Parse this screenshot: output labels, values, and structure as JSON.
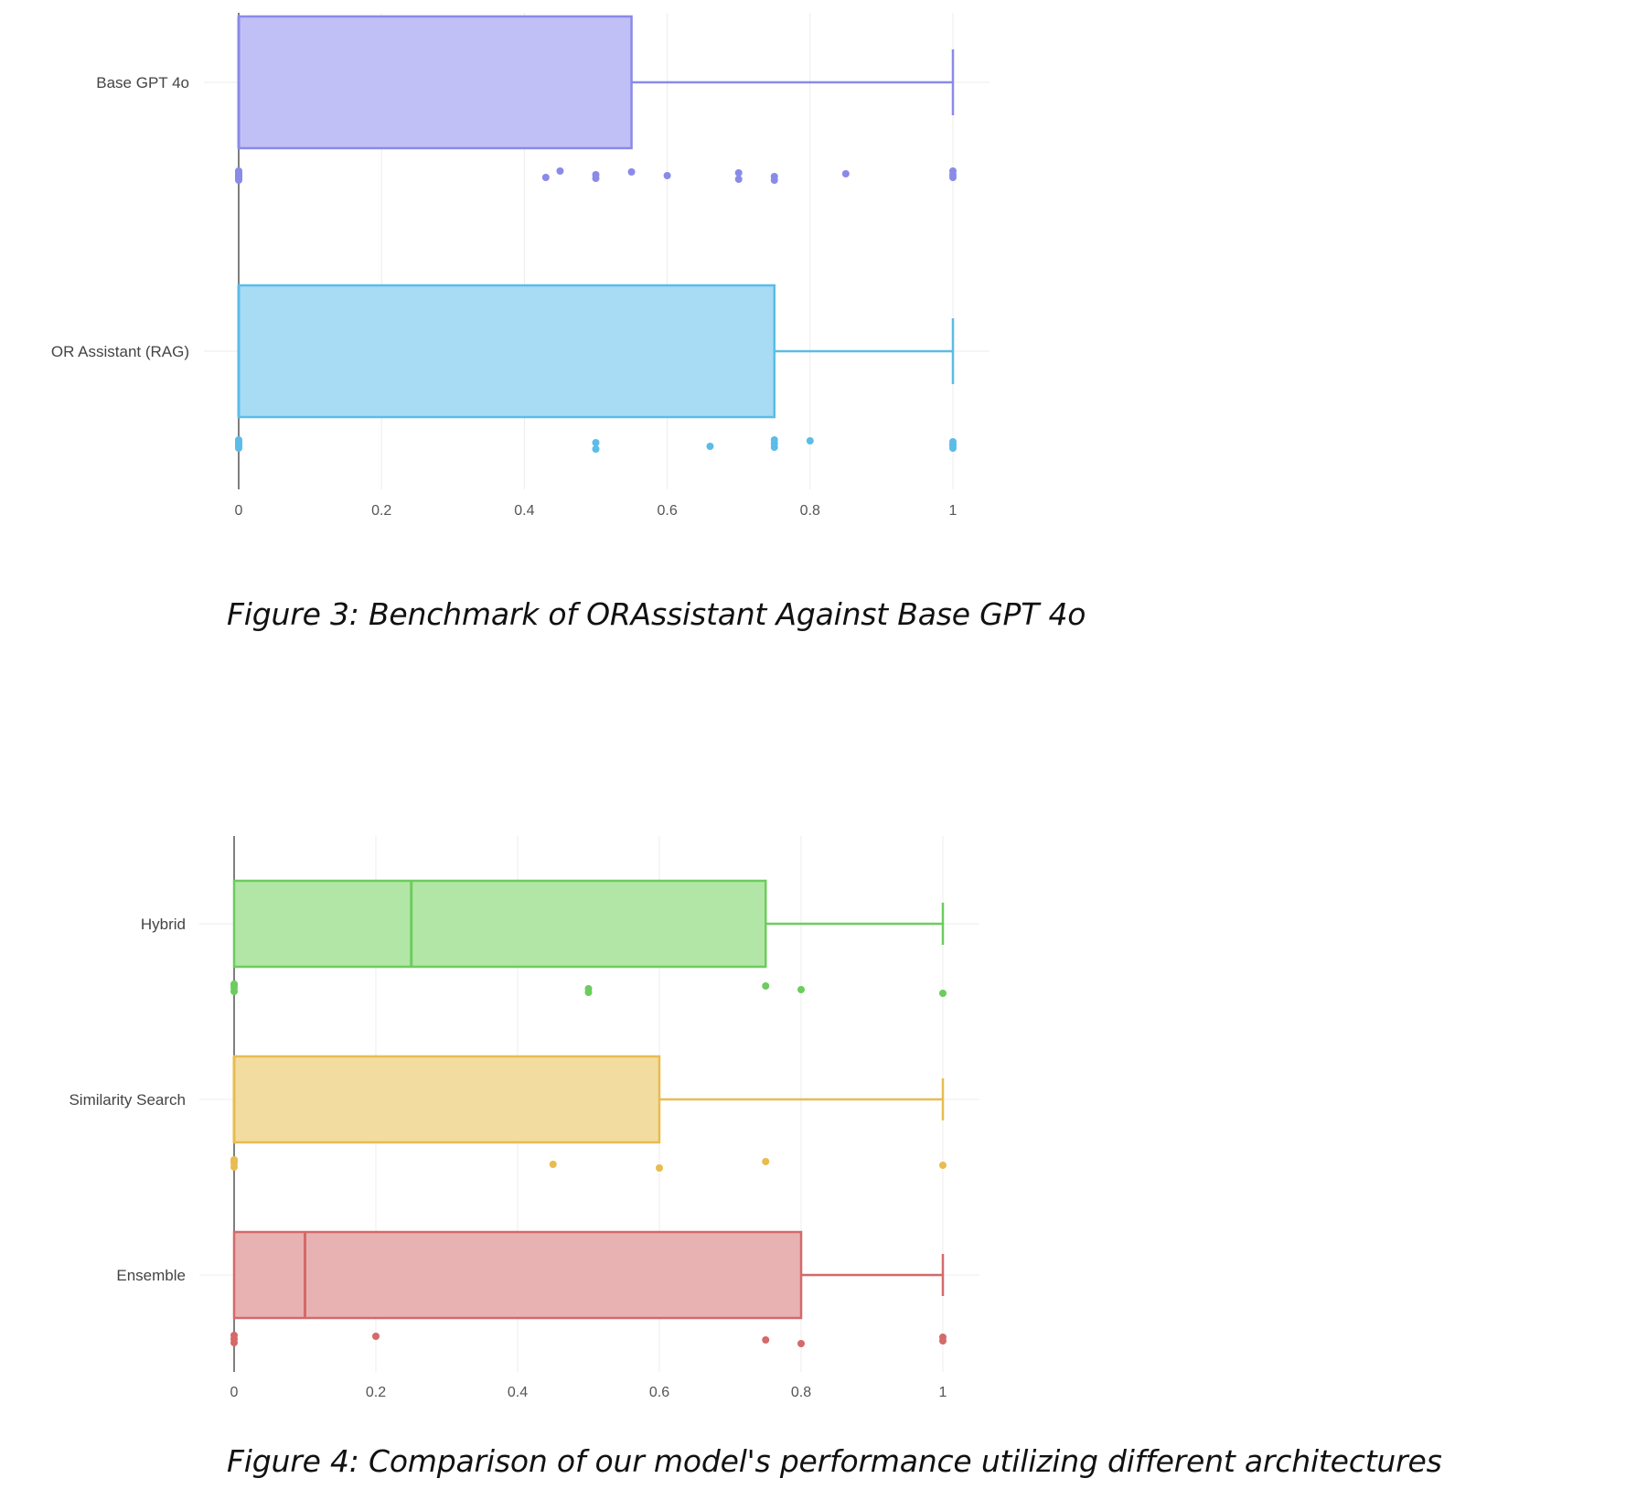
{
  "chart_data": [
    {
      "type": "box",
      "orientation": "horizontal",
      "caption": "Figure 3: Benchmark of ORAssistant Against Base GPT 4o",
      "xlim": [
        0,
        1
      ],
      "x_ticks": [
        0,
        0.2,
        0.4,
        0.6,
        0.8,
        1
      ],
      "x_tick_labels": [
        "0",
        "0.2",
        "0.4",
        "0.6",
        "0.8",
        "1"
      ],
      "grid": true,
      "series": [
        {
          "name": "Base GPT 4o",
          "color": "#8a8ae8",
          "fill": "#c0c0f6",
          "q1": 0,
          "median": 0,
          "q3": 0.55,
          "whisker_low": 0,
          "whisker_high": 1,
          "points": [
            0,
            0,
            0,
            0,
            0,
            0,
            0,
            0,
            0,
            0,
            0.43,
            0.45,
            0.5,
            0.5,
            0.55,
            0.6,
            0.7,
            0.7,
            0.75,
            0.75,
            0.85,
            1,
            1,
            1
          ]
        },
        {
          "name": "OR Assistant (RAG)",
          "color": "#5bbce8",
          "fill": "#a8dcf4",
          "q1": 0,
          "median": 0,
          "q3": 0.75,
          "whisker_low": 0,
          "whisker_high": 1,
          "points": [
            0,
            0,
            0,
            0,
            0,
            0,
            0,
            0,
            0.5,
            0.5,
            0.66,
            0.75,
            0.75,
            0.75,
            0.8,
            1,
            1,
            1,
            1
          ]
        }
      ]
    },
    {
      "type": "box",
      "orientation": "horizontal",
      "caption": "Figure 4: Comparison of our model's performance utilizing different architectures",
      "xlim": [
        0,
        1
      ],
      "x_ticks": [
        0,
        0.2,
        0.4,
        0.6,
        0.8,
        1
      ],
      "x_tick_labels": [
        "0",
        "0.2",
        "0.4",
        "0.6",
        "0.8",
        "1"
      ],
      "grid": true,
      "series": [
        {
          "name": "Hybrid",
          "color": "#6ccc5e",
          "fill": "#b2e6a6",
          "q1": 0,
          "median": 0.25,
          "q3": 0.75,
          "whisker_low": 0,
          "whisker_high": 1,
          "points": [
            0,
            0,
            0,
            0,
            0.5,
            0.5,
            0.75,
            0.8,
            1
          ]
        },
        {
          "name": "Similarity Search",
          "color": "#e8bc50",
          "fill": "#f2dca0",
          "q1": 0,
          "median": 0,
          "q3": 0.6,
          "whisker_low": 0,
          "whisker_high": 1,
          "points": [
            0,
            0,
            0,
            0,
            0.45,
            0.6,
            0.75,
            1
          ]
        },
        {
          "name": "Ensemble",
          "color": "#d46a6a",
          "fill": "#e8b2b2",
          "q1": 0,
          "median": 0.1,
          "q3": 0.8,
          "whisker_low": 0,
          "whisker_high": 1,
          "points": [
            0,
            0,
            0,
            0.2,
            0.75,
            0.8,
            1,
            1
          ]
        }
      ]
    }
  ]
}
